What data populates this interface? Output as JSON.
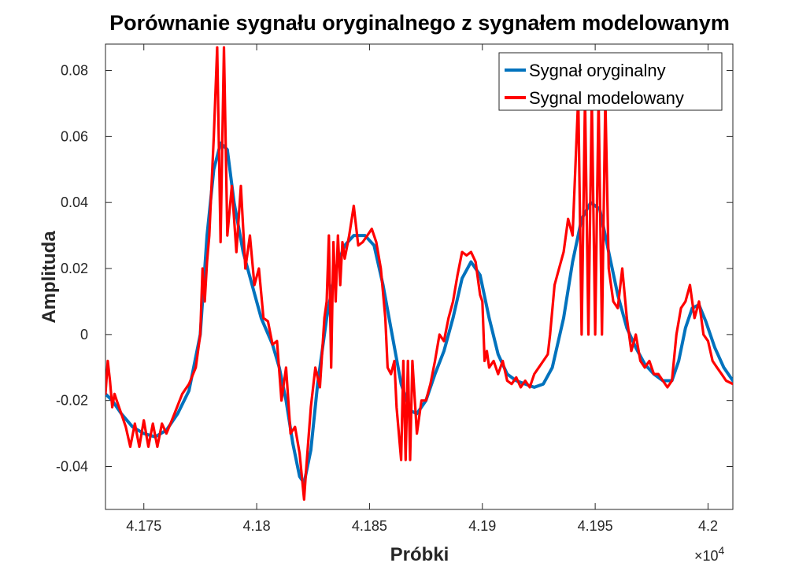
{
  "chart_data": {
    "type": "line",
    "title": "Porównanie sygnału oryginalnego z sygnałem modelowanym",
    "xlabel": "Próbki",
    "ylabel": "Amplituda",
    "x_exponent_label": "×10",
    "x_exponent_power": "4",
    "xlim": [
      4.1733,
      4.2011
    ],
    "ylim": [
      -0.053,
      0.088
    ],
    "xticks": [
      4.175,
      4.18,
      4.185,
      4.19,
      4.195,
      4.2
    ],
    "xtick_labels": [
      "4.175",
      "4.18",
      "4.185",
      "4.19",
      "4.195",
      "4.2"
    ],
    "yticks": [
      -0.04,
      -0.02,
      0,
      0.02,
      0.04,
      0.06,
      0.08
    ],
    "ytick_labels": [
      "-0.04",
      "-0.02",
      "0",
      "0.02",
      "0.04",
      "0.06",
      "0.08"
    ],
    "legend_position": "top-right",
    "grid": false,
    "series": [
      {
        "name": "Sygnał oryginalny",
        "color": "#0072BD",
        "points": [
          [
            4.1733,
            -0.018
          ],
          [
            4.1736,
            -0.02
          ],
          [
            4.174,
            -0.024
          ],
          [
            4.1745,
            -0.028
          ],
          [
            4.175,
            -0.03
          ],
          [
            4.1755,
            -0.031
          ],
          [
            4.176,
            -0.029
          ],
          [
            4.1765,
            -0.024
          ],
          [
            4.177,
            -0.017
          ],
          [
            4.1775,
            0.0
          ],
          [
            4.1778,
            0.03
          ],
          [
            4.1781,
            0.05
          ],
          [
            4.1784,
            0.058
          ],
          [
            4.1787,
            0.056
          ],
          [
            4.179,
            0.04
          ],
          [
            4.1794,
            0.025
          ],
          [
            4.1798,
            0.015
          ],
          [
            4.1802,
            0.005
          ],
          [
            4.1807,
            -0.003
          ],
          [
            4.181,
            -0.01
          ],
          [
            4.1813,
            -0.02
          ],
          [
            4.1816,
            -0.033
          ],
          [
            4.1819,
            -0.043
          ],
          [
            4.1821,
            -0.045
          ],
          [
            4.1824,
            -0.035
          ],
          [
            4.1827,
            -0.015
          ],
          [
            4.1831,
            0.005
          ],
          [
            4.1835,
            0.02
          ],
          [
            4.1839,
            0.027
          ],
          [
            4.1843,
            0.03
          ],
          [
            4.1848,
            0.03
          ],
          [
            4.1852,
            0.027
          ],
          [
            4.1856,
            0.015
          ],
          [
            4.186,
            0.0
          ],
          [
            4.1864,
            -0.015
          ],
          [
            4.1868,
            -0.023
          ],
          [
            4.1871,
            -0.024
          ],
          [
            4.1875,
            -0.02
          ],
          [
            4.1879,
            -0.012
          ],
          [
            4.1883,
            -0.005
          ],
          [
            4.1887,
            0.005
          ],
          [
            4.1891,
            0.017
          ],
          [
            4.1895,
            0.022
          ],
          [
            4.1899,
            0.018
          ],
          [
            4.1903,
            0.005
          ],
          [
            4.1907,
            -0.006
          ],
          [
            4.1911,
            -0.012
          ],
          [
            4.1915,
            -0.014
          ],
          [
            4.1919,
            -0.015
          ],
          [
            4.1923,
            -0.016
          ],
          [
            4.1927,
            -0.015
          ],
          [
            4.1931,
            -0.01
          ],
          [
            4.1936,
            0.005
          ],
          [
            4.194,
            0.022
          ],
          [
            4.1944,
            0.035
          ],
          [
            4.1948,
            0.04
          ],
          [
            4.1952,
            0.038
          ],
          [
            4.1956,
            0.025
          ],
          [
            4.196,
            0.012
          ],
          [
            4.1964,
            0.002
          ],
          [
            4.1968,
            -0.004
          ],
          [
            4.1972,
            -0.009
          ],
          [
            4.1976,
            -0.012
          ],
          [
            4.198,
            -0.014
          ],
          [
            4.1984,
            -0.014
          ],
          [
            4.1987,
            -0.008
          ],
          [
            4.199,
            0.002
          ],
          [
            4.1993,
            0.008
          ],
          [
            4.1996,
            0.009
          ],
          [
            4.1999,
            0.004
          ],
          [
            4.2003,
            -0.004
          ],
          [
            4.2007,
            -0.01
          ],
          [
            4.2011,
            -0.014
          ]
        ]
      },
      {
        "name": "Sygnal modelowany",
        "color": "#FF0000",
        "points": [
          [
            4.1733,
            -0.018
          ],
          [
            4.1734,
            -0.008
          ],
          [
            4.1735,
            -0.014
          ],
          [
            4.1736,
            -0.022
          ],
          [
            4.1737,
            -0.018
          ],
          [
            4.1738,
            -0.02
          ],
          [
            4.174,
            -0.024
          ],
          [
            4.1742,
            -0.028
          ],
          [
            4.1744,
            -0.034
          ],
          [
            4.1746,
            -0.027
          ],
          [
            4.1748,
            -0.034
          ],
          [
            4.175,
            -0.026
          ],
          [
            4.1752,
            -0.034
          ],
          [
            4.1754,
            -0.027
          ],
          [
            4.1756,
            -0.034
          ],
          [
            4.1758,
            -0.027
          ],
          [
            4.176,
            -0.03
          ],
          [
            4.1763,
            -0.025
          ],
          [
            4.1767,
            -0.018
          ],
          [
            4.177,
            -0.015
          ],
          [
            4.1773,
            -0.01
          ],
          [
            4.1775,
            0.0
          ],
          [
            4.1776,
            0.02
          ],
          [
            4.1777,
            0.01
          ],
          [
            4.1778,
            0.022
          ],
          [
            4.1779,
            0.03
          ],
          [
            4.178,
            0.045
          ],
          [
            4.1781,
            0.06
          ],
          [
            4.17825,
            0.087
          ],
          [
            4.1784,
            0.028
          ],
          [
            4.17855,
            0.087
          ],
          [
            4.1787,
            0.03
          ],
          [
            4.1789,
            0.045
          ],
          [
            4.1791,
            0.025
          ],
          [
            4.1793,
            0.045
          ],
          [
            4.1795,
            0.02
          ],
          [
            4.1797,
            0.03
          ],
          [
            4.1799,
            0.015
          ],
          [
            4.1801,
            0.02
          ],
          [
            4.1803,
            0.005
          ],
          [
            4.1805,
            0.004
          ],
          [
            4.1807,
            -0.003
          ],
          [
            4.1809,
            -0.002
          ],
          [
            4.1811,
            -0.02
          ],
          [
            4.1813,
            -0.01
          ],
          [
            4.1815,
            -0.03
          ],
          [
            4.1817,
            -0.028
          ],
          [
            4.1819,
            -0.036
          ],
          [
            4.1821,
            -0.05
          ],
          [
            4.1822,
            -0.04
          ],
          [
            4.1824,
            -0.022
          ],
          [
            4.1826,
            -0.01
          ],
          [
            4.1828,
            -0.016
          ],
          [
            4.183,
            0.005
          ],
          [
            4.1831,
            0.01
          ],
          [
            4.1832,
            0.03
          ],
          [
            4.1833,
            -0.01
          ],
          [
            4.1834,
            0.028
          ],
          [
            4.1835,
            0.01
          ],
          [
            4.1836,
            0.03
          ],
          [
            4.1837,
            0.015
          ],
          [
            4.1838,
            0.028
          ],
          [
            4.1839,
            0.023
          ],
          [
            4.1841,
            0.03
          ],
          [
            4.1843,
            0.039
          ],
          [
            4.1845,
            0.027
          ],
          [
            4.1847,
            0.028
          ],
          [
            4.1849,
            0.03
          ],
          [
            4.1851,
            0.032
          ],
          [
            4.1853,
            0.028
          ],
          [
            4.1855,
            0.02
          ],
          [
            4.1857,
            0.005
          ],
          [
            4.1858,
            -0.01
          ],
          [
            4.18595,
            -0.012
          ],
          [
            4.1861,
            -0.008
          ],
          [
            4.1862,
            -0.022
          ],
          [
            4.1864,
            -0.038
          ],
          [
            4.1865,
            -0.008
          ],
          [
            4.1866,
            -0.038
          ],
          [
            4.1867,
            -0.008
          ],
          [
            4.1868,
            -0.038
          ],
          [
            4.1869,
            -0.008
          ],
          [
            4.1871,
            -0.03
          ],
          [
            4.1873,
            -0.02
          ],
          [
            4.1875,
            -0.02
          ],
          [
            4.1877,
            -0.015
          ],
          [
            4.1879,
            -0.008
          ],
          [
            4.1881,
            0.0
          ],
          [
            4.1883,
            -0.002
          ],
          [
            4.1885,
            0.005
          ],
          [
            4.1887,
            0.01
          ],
          [
            4.1889,
            0.018
          ],
          [
            4.1891,
            0.025
          ],
          [
            4.1893,
            0.024
          ],
          [
            4.1895,
            0.025
          ],
          [
            4.1897,
            0.022
          ],
          [
            4.1899,
            0.012
          ],
          [
            4.19,
            0.01
          ],
          [
            4.1901,
            -0.008
          ],
          [
            4.1902,
            -0.005
          ],
          [
            4.1903,
            -0.01
          ],
          [
            4.1905,
            -0.008
          ],
          [
            4.1907,
            -0.012
          ],
          [
            4.1909,
            -0.008
          ],
          [
            4.1911,
            -0.014
          ],
          [
            4.1913,
            -0.015
          ],
          [
            4.1915,
            -0.013
          ],
          [
            4.1917,
            -0.016
          ],
          [
            4.1919,
            -0.014
          ],
          [
            4.1921,
            -0.016
          ],
          [
            4.1923,
            -0.012
          ],
          [
            4.1925,
            -0.01
          ],
          [
            4.1927,
            -0.008
          ],
          [
            4.1929,
            -0.006
          ],
          [
            4.193,
            0.0
          ],
          [
            4.1932,
            0.015
          ],
          [
            4.1934,
            0.02
          ],
          [
            4.1936,
            0.025
          ],
          [
            4.1938,
            0.035
          ],
          [
            4.194,
            0.03
          ],
          [
            4.19425,
            0.072
          ],
          [
            4.1944,
            0.0
          ],
          [
            4.19455,
            0.072
          ],
          [
            4.1947,
            0.0
          ],
          [
            4.19485,
            0.072
          ],
          [
            4.195,
            0.0
          ],
          [
            4.19515,
            0.072
          ],
          [
            4.1953,
            0.0
          ],
          [
            4.19545,
            0.072
          ],
          [
            4.1956,
            0.02
          ],
          [
            4.1958,
            0.01
          ],
          [
            4.196,
            0.008
          ],
          [
            4.1962,
            0.02
          ],
          [
            4.1964,
            0.005
          ],
          [
            4.1966,
            -0.005
          ],
          [
            4.1968,
            0.0
          ],
          [
            4.197,
            -0.008
          ],
          [
            4.1972,
            -0.01
          ],
          [
            4.1974,
            -0.008
          ],
          [
            4.1976,
            -0.012
          ],
          [
            4.1978,
            -0.012
          ],
          [
            4.198,
            -0.014
          ],
          [
            4.1982,
            -0.016
          ],
          [
            4.1984,
            -0.014
          ],
          [
            4.1986,
            0.0
          ],
          [
            4.1988,
            0.008
          ],
          [
            4.199,
            0.01
          ],
          [
            4.1992,
            0.015
          ],
          [
            4.1994,
            0.005
          ],
          [
            4.1996,
            0.01
          ],
          [
            4.1998,
            0.0
          ],
          [
            4.2,
            -0.002
          ],
          [
            4.2002,
            -0.008
          ],
          [
            4.2004,
            -0.01
          ],
          [
            4.2006,
            -0.012
          ],
          [
            4.2008,
            -0.014
          ],
          [
            4.2011,
            -0.015
          ]
        ]
      }
    ]
  }
}
